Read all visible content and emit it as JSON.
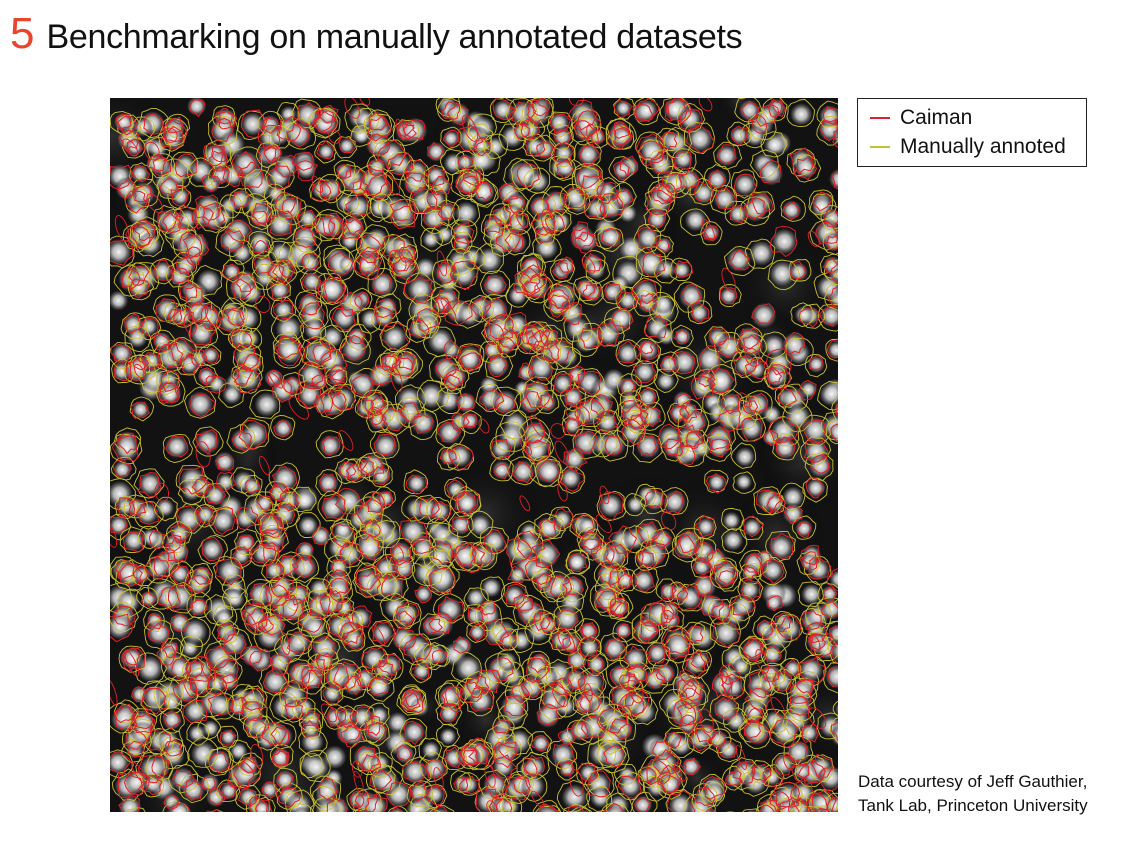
{
  "header": {
    "number": "5",
    "title": "Benchmarking on manually annotated datasets"
  },
  "legend": {
    "items": [
      {
        "label": "Caiman",
        "color": "#e0202a"
      },
      {
        "label": "Manually annoted",
        "color": "#c8c032"
      }
    ]
  },
  "credit": {
    "line1": "Data courtesy of Jeff  Gauthier,",
    "line2": "Tank Lab, Princeton University"
  },
  "image": {
    "description_icon": "microscopy-image-icon",
    "background_color": "#0d0d0d",
    "cell_color": "#e8e8e8",
    "caiman_color": "#e0202a",
    "manual_color": "#c8c032"
  }
}
